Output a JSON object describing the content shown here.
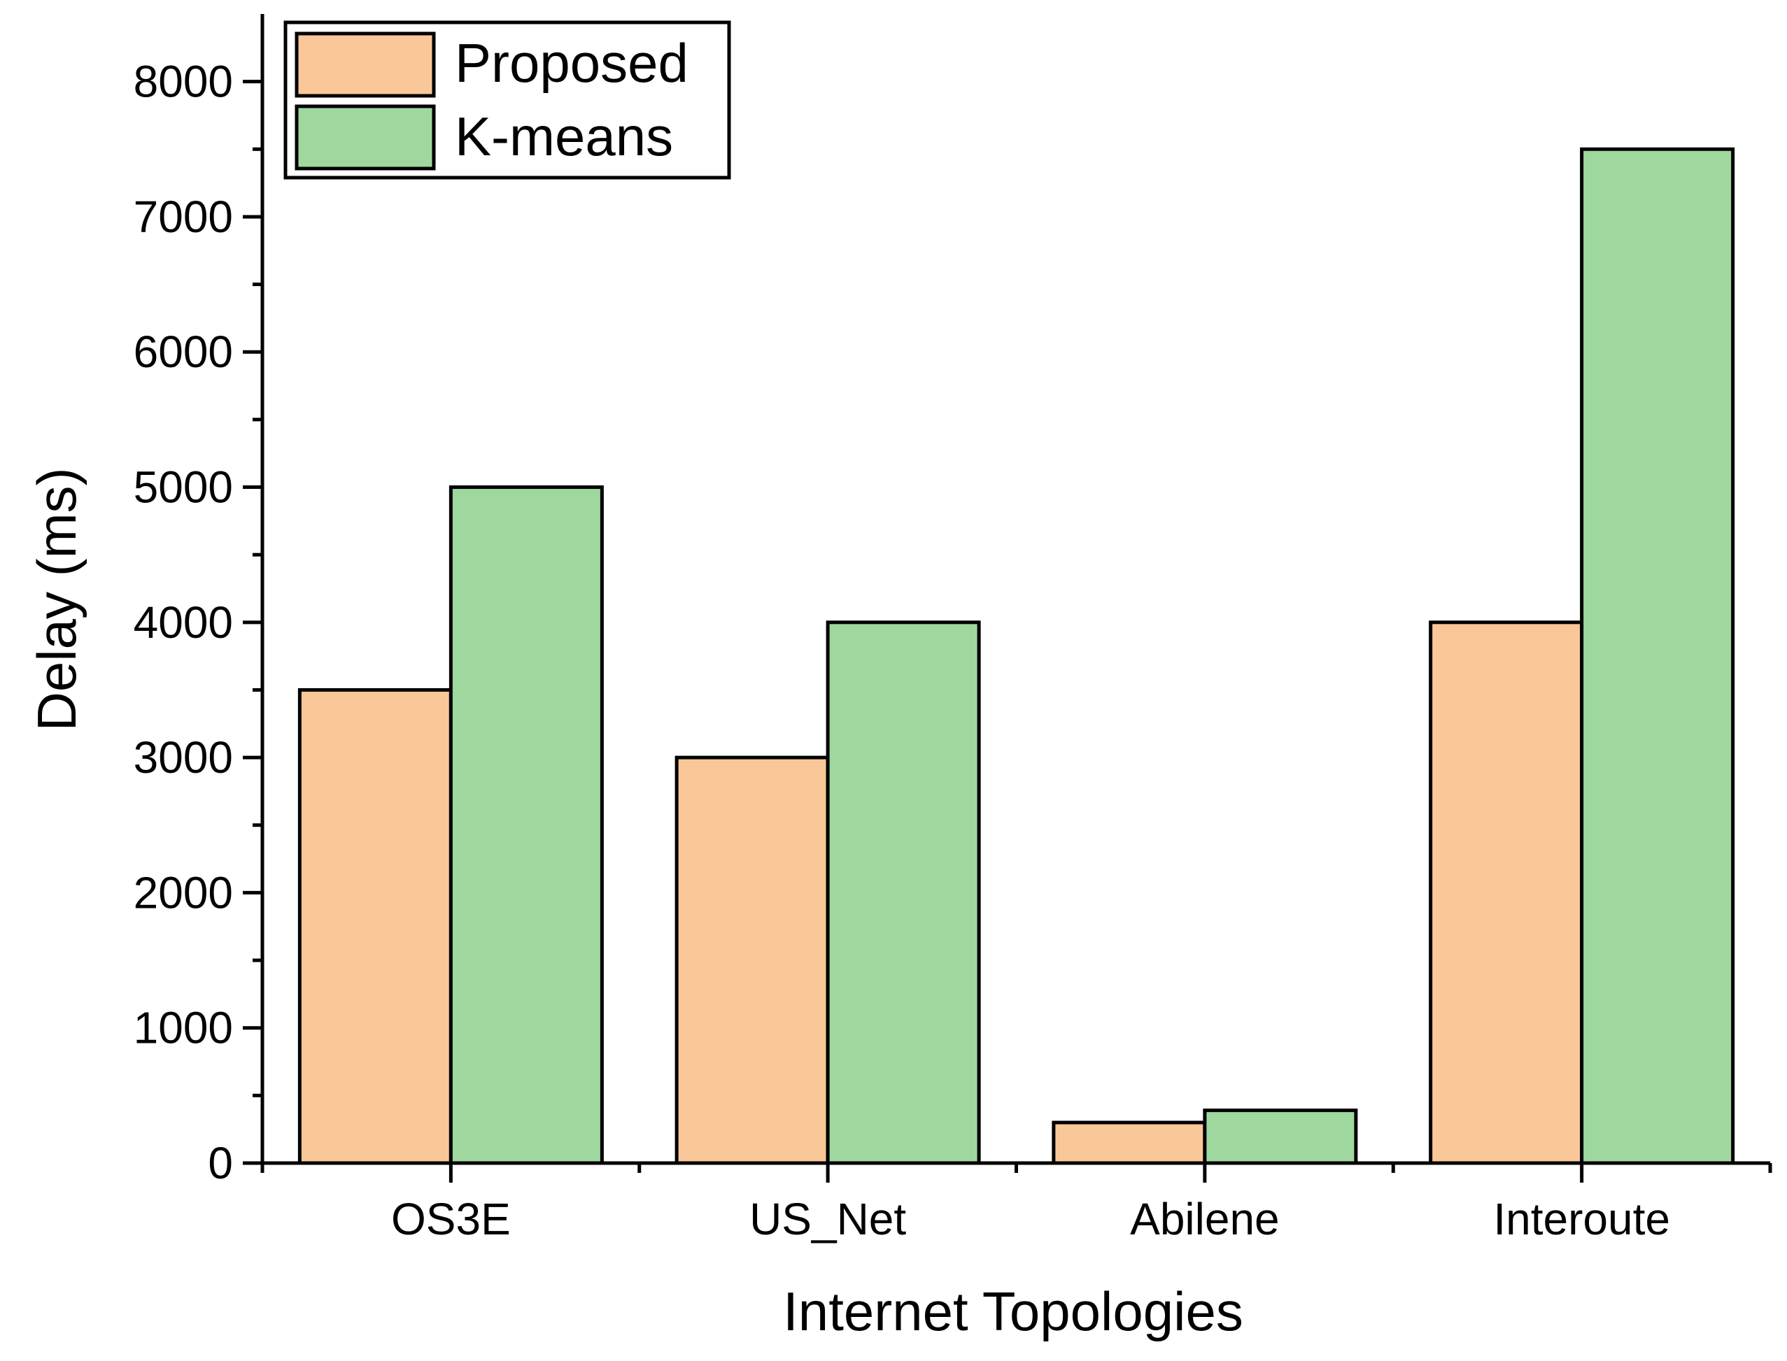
{
  "chart_data": {
    "type": "bar",
    "title": "",
    "xlabel": "Internet Topologies",
    "ylabel": "Delay (ms)",
    "ylim": [
      0,
      8500
    ],
    "y_ticks": [
      0,
      1000,
      2000,
      3000,
      4000,
      5000,
      6000,
      7000,
      8000
    ],
    "y_tick_labels": [
      "0",
      "1000",
      "2000",
      "3000",
      "4000",
      "5000",
      "6000",
      "7000",
      "8000"
    ],
    "categories": [
      "OS3E",
      "US_Net",
      "Abilene",
      "Interoute"
    ],
    "series": [
      {
        "name": "Proposed",
        "color": "#FAC898",
        "values": [
          3500,
          3000,
          300,
          4000
        ]
      },
      {
        "name": "K-means",
        "color": "#9FD89F",
        "values": [
          5000,
          4000,
          390,
          7500
        ]
      }
    ],
    "grid": false,
    "legend_position": "top-left",
    "frame": "left and bottom axes only"
  }
}
